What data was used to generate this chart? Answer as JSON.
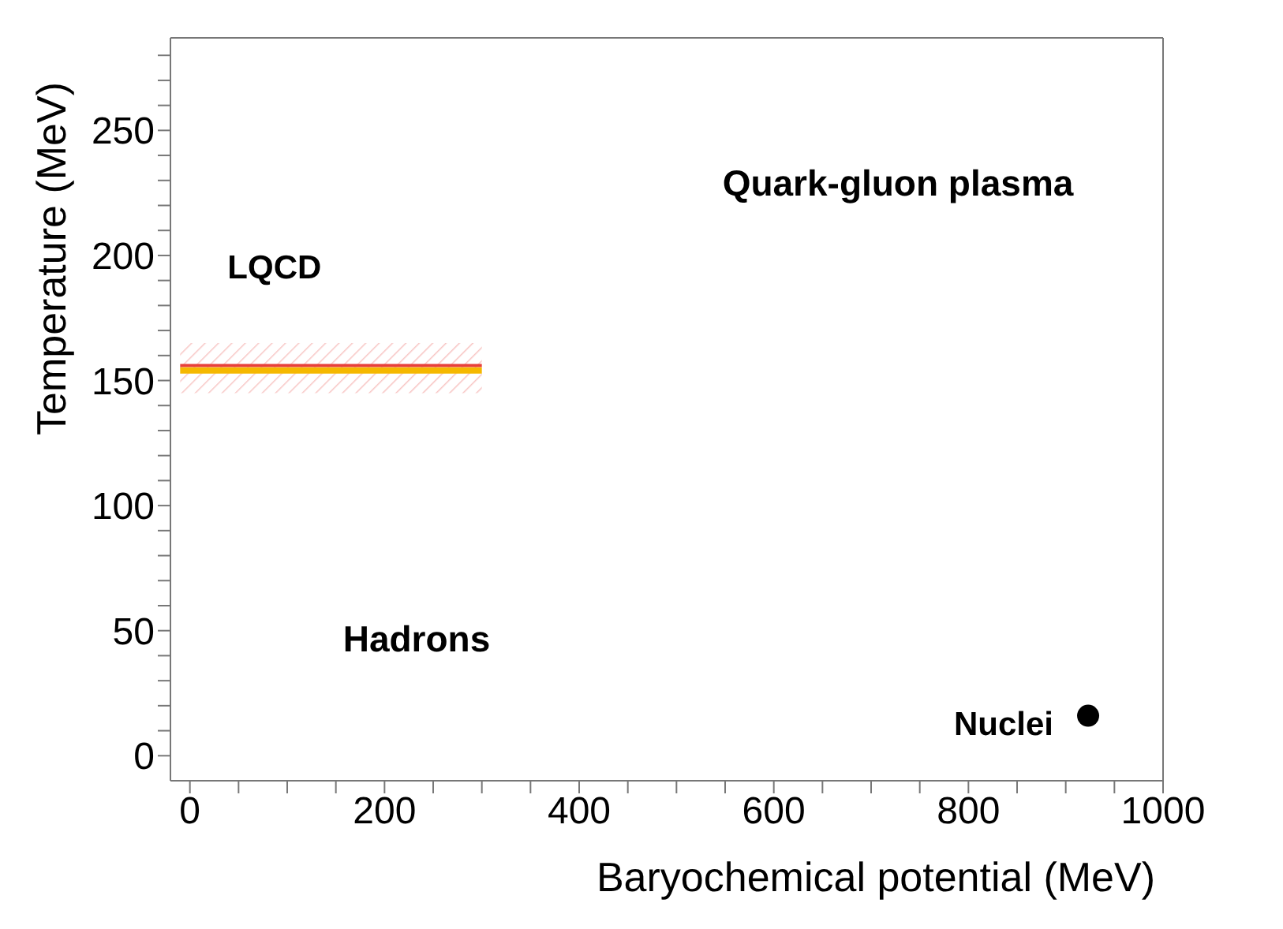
{
  "chart_data": {
    "type": "line",
    "xlabel": "Baryochemical potential (MeV)",
    "ylabel": "Temperature (MeV)",
    "xlim": [
      -20,
      1000
    ],
    "ylim": [
      -10,
      287
    ],
    "xticks": [
      0,
      {
        "value": 50,
        "label": null
      },
      {
        "value": 100,
        "label": null
      },
      {
        "value": 150,
        "label": null
      },
      200,
      {
        "value": 250,
        "label": null
      },
      {
        "value": 300,
        "label": null
      },
      {
        "value": 350,
        "label": null
      },
      400,
      {
        "value": 450,
        "label": null
      },
      {
        "value": 500,
        "label": null
      },
      {
        "value": 550,
        "label": null
      },
      600,
      {
        "value": 650,
        "label": null
      },
      {
        "value": 700,
        "label": null
      },
      {
        "value": 750,
        "label": null
      },
      800,
      {
        "value": 850,
        "label": null
      },
      {
        "value": 900,
        "label": null
      },
      {
        "value": 950,
        "label": null
      },
      1000
    ],
    "yticks": [
      0,
      {
        "value": 10,
        "label": null
      },
      {
        "value": 20,
        "label": null
      },
      {
        "value": 30,
        "label": null
      },
      {
        "value": 40,
        "label": null
      },
      50,
      {
        "value": 60,
        "label": null
      },
      {
        "value": 70,
        "label": null
      },
      {
        "value": 80,
        "label": null
      },
      {
        "value": 90,
        "label": null
      },
      100,
      {
        "value": 110,
        "label": null
      },
      {
        "value": 120,
        "label": null
      },
      {
        "value": 130,
        "label": null
      },
      {
        "value": 140,
        "label": null
      },
      150,
      {
        "value": 160,
        "label": null
      },
      {
        "value": 170,
        "label": null
      },
      {
        "value": 180,
        "label": null
      },
      {
        "value": 190,
        "label": null
      },
      200,
      {
        "value": 210,
        "label": null
      },
      {
        "value": 220,
        "label": null
      },
      {
        "value": 230,
        "label": null
      },
      {
        "value": 240,
        "label": null
      },
      250,
      {
        "value": 260,
        "label": null
      },
      {
        "value": 270,
        "label": null
      },
      {
        "value": 280,
        "label": null
      }
    ],
    "grid": false,
    "legend": false,
    "series": [
      {
        "name": "LQCD",
        "color": "#e8403a",
        "x": [
          -10,
          300
        ],
        "values": [
          156,
          156
        ],
        "lower": [
          145,
          145
        ],
        "upper": [
          165,
          165
        ]
      },
      {
        "color": "#f5b800",
        "x": [
          -10,
          300
        ],
        "values": [
          154,
          154
        ]
      },
      {
        "name": "Nuclei",
        "type": "scatter",
        "color": "#000000",
        "marker": "circle",
        "x": [
          923
        ],
        "values": [
          16
        ]
      }
    ],
    "annotations": [
      "Quark-gluon plasma",
      "Hadrons"
    ]
  }
}
